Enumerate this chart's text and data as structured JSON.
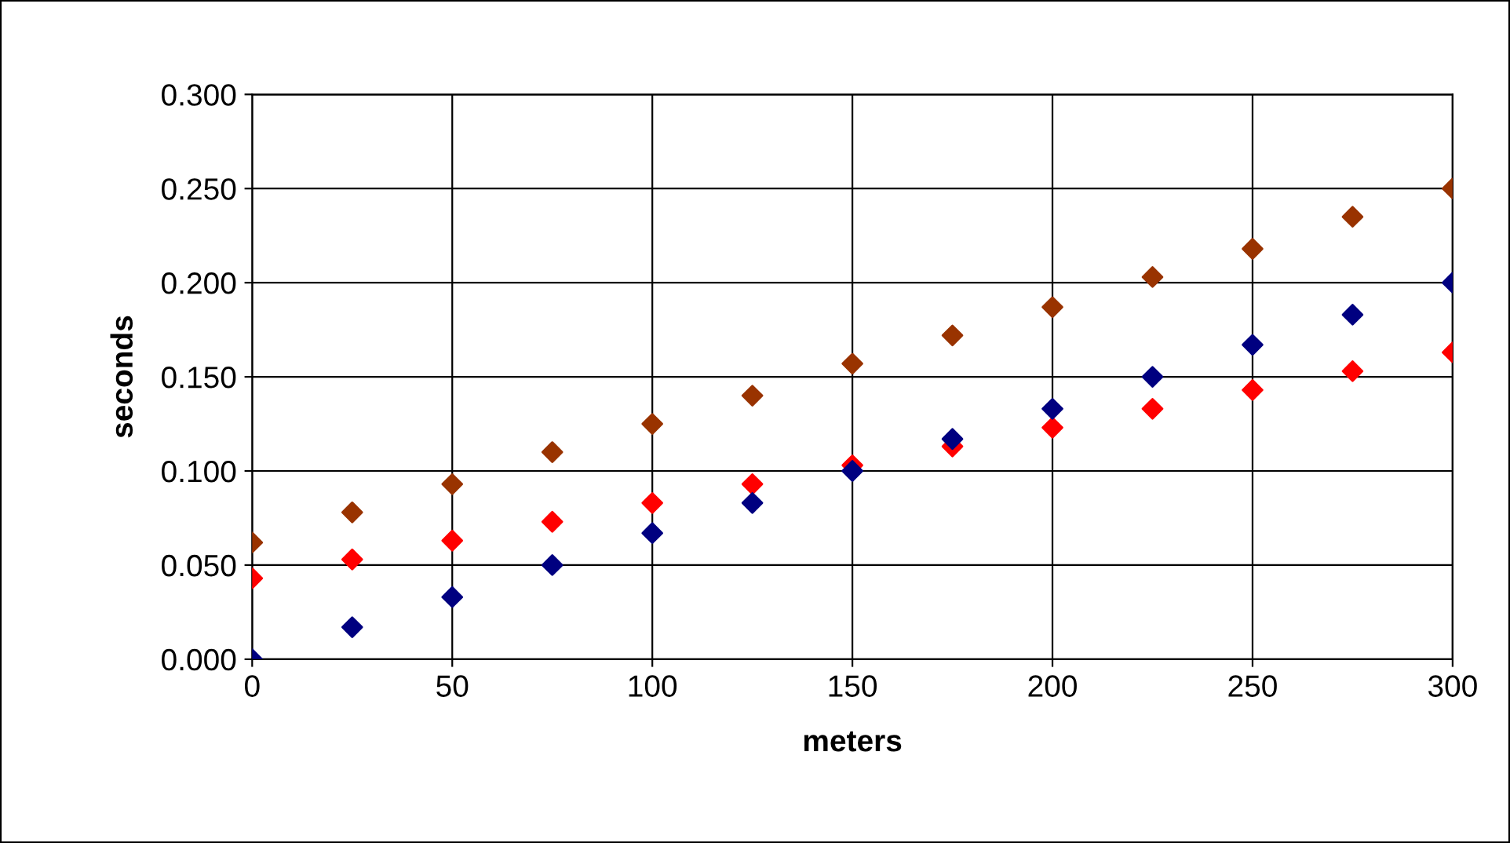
{
  "chart_data": {
    "type": "scatter",
    "xlabel": "meters",
    "ylabel": "seconds",
    "x": [
      0,
      25,
      50,
      75,
      100,
      125,
      150,
      175,
      200,
      225,
      250,
      275,
      300
    ],
    "series": [
      {
        "color": "#000080",
        "values": [
          0.0,
          0.017,
          0.033,
          0.05,
          0.067,
          0.083,
          0.1,
          0.117,
          0.133,
          0.15,
          0.167,
          0.183,
          0.2
        ]
      },
      {
        "color": "#993300",
        "values": [
          0.062,
          0.078,
          0.093,
          0.11,
          0.125,
          0.14,
          0.157,
          0.172,
          0.187,
          0.203,
          0.218,
          0.235,
          0.25
        ]
      },
      {
        "color": "#ff0000",
        "values": [
          0.043,
          0.053,
          0.063,
          0.073,
          0.083,
          0.093,
          0.103,
          0.113,
          0.123,
          0.133,
          0.143,
          0.153,
          0.163
        ]
      }
    ],
    "xlim": [
      0,
      300
    ],
    "xticks": [
      0,
      50,
      100,
      150,
      200,
      250,
      300
    ],
    "ylim": [
      0,
      0.3
    ],
    "yticks": [
      {
        "value": 0,
        "label": "0.000"
      },
      {
        "value": 0.05,
        "label": "0.050"
      },
      {
        "value": 0.1,
        "label": "0.100"
      },
      {
        "value": 0.15,
        "label": "0.150"
      },
      {
        "value": 0.2,
        "label": "0.200"
      },
      {
        "value": 0.25,
        "label": "0.250"
      },
      {
        "value": 0.3,
        "label": "0.300"
      }
    ],
    "grid": true,
    "marker": "diamond",
    "legend": false
  }
}
